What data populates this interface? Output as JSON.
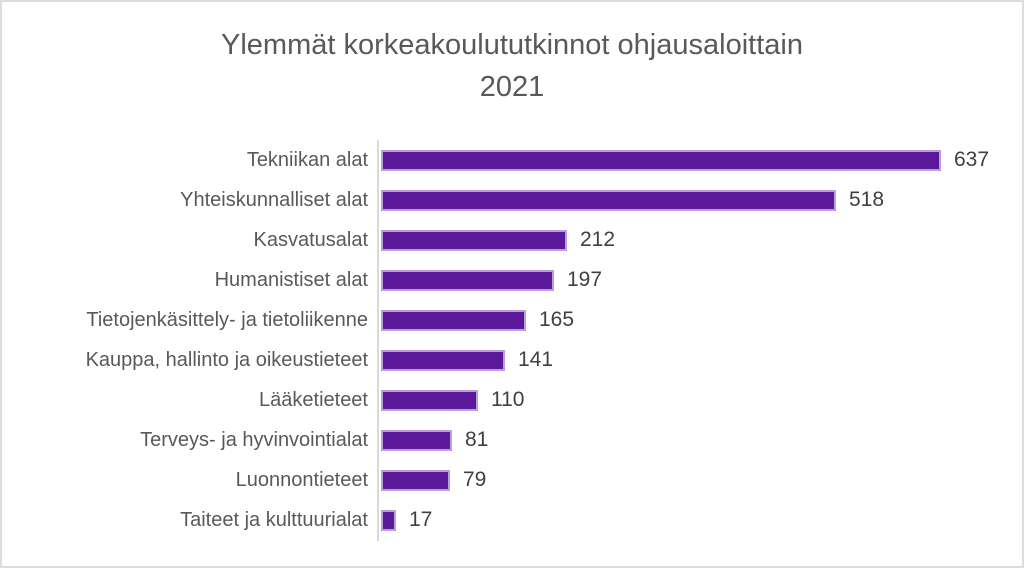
{
  "chart_data": {
    "type": "bar",
    "orientation": "horizontal",
    "title": "Ylemmät korkeakoulututkinnot ohjausaloittain 2021",
    "title_lines": [
      "Ylemmät korkeakoulututkinnot ohjausaloittain",
      "2021"
    ],
    "categories": [
      "Tekniikan alat",
      "Yhteiskunnalliset alat",
      "Kasvatusalat",
      "Humanistiset alat",
      "Tietojenkäsittely- ja tietoliikenne",
      "Kauppa, hallinto ja oikeustieteet",
      "Lääketieteet",
      "Terveys- ja hyvinvointialat",
      "Luonnontieteet",
      "Taiteet ja kulttuurialat"
    ],
    "values": [
      637,
      518,
      212,
      197,
      165,
      141,
      110,
      81,
      79,
      17
    ],
    "xlabel": "",
    "ylabel": "",
    "xlim": [
      0,
      660
    ],
    "grid": false,
    "legend": "none",
    "data_labels": true,
    "colors": {
      "bar_fill": "#5a189a",
      "bar_border": "#b9a0dc",
      "axis_line": "#d9d9d9",
      "category_label": "#595959",
      "value_label": "#404040",
      "title": "#595959",
      "background": "#ffffff",
      "frame_border": "#dcdcdc"
    }
  }
}
